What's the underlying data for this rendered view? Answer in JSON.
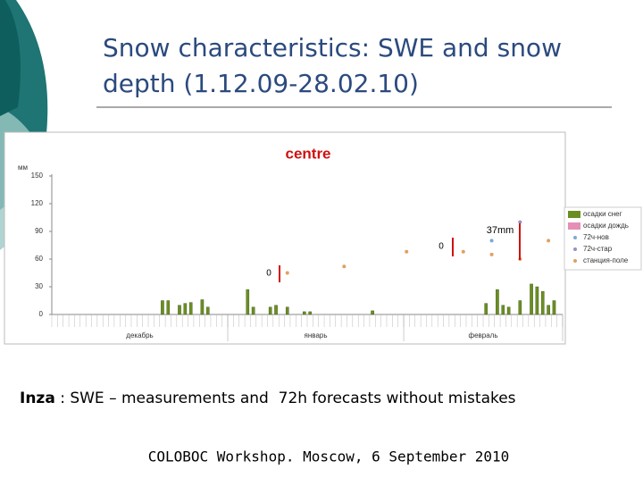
{
  "slide": {
    "title_lines": [
      "Snow characteristics: SWE and snow",
      "depth (1.12.09-28.02.10)"
    ],
    "caption_place": "Inza",
    "caption_text": " : SWE – measurements and  72h forecasts without mistakes",
    "footer": "COLOBOC Workshop. Moscow, 6 September 2010"
  },
  "chart_data": {
    "type": "bar",
    "title": "centre",
    "y_label": "мм",
    "ylim": [
      0,
      150
    ],
    "yticks": [
      0,
      30,
      60,
      90,
      120,
      150
    ],
    "month_labels": [
      "декабрь",
      "январь",
      "февраль"
    ],
    "annotations": [
      "0",
      "0",
      "37mm"
    ],
    "categories": [
      null,
      null,
      null,
      null,
      null,
      null,
      null,
      null,
      null,
      null,
      null,
      null,
      null,
      null,
      null,
      null,
      null,
      null,
      null,
      null,
      null,
      null,
      null,
      null,
      null,
      null,
      null,
      null,
      null,
      null,
      null,
      null,
      null,
      null,
      null,
      null,
      null,
      null,
      null,
      null,
      null,
      null,
      null,
      null,
      null,
      null,
      null,
      null,
      null,
      null,
      null,
      null,
      null,
      null,
      null,
      null,
      null,
      null,
      null,
      null,
      null,
      null,
      null,
      null,
      null,
      null,
      null,
      null,
      null,
      null,
      null,
      null,
      null,
      null,
      null,
      null,
      null,
      null,
      null,
      null,
      null,
      null,
      null,
      null,
      null,
      null,
      null,
      null,
      null,
      null
    ],
    "series": [
      {
        "name": "осадки снег",
        "color": "#6b8e23",
        "mark": "bar",
        "values": [
          null,
          null,
          null,
          null,
          null,
          null,
          null,
          null,
          null,
          null,
          null,
          null,
          null,
          null,
          null,
          null,
          null,
          null,
          null,
          15,
          15,
          null,
          10,
          12,
          13,
          null,
          16,
          8,
          null,
          null,
          null,
          null,
          null,
          null,
          27,
          8,
          null,
          null,
          8,
          10,
          null,
          8,
          null,
          null,
          3,
          3,
          null,
          null,
          null,
          null,
          null,
          null,
          null,
          null,
          null,
          null,
          4,
          null,
          null,
          null,
          null,
          null,
          null,
          null,
          null,
          null,
          null,
          null,
          null,
          null,
          null,
          null,
          null,
          null,
          null,
          null,
          12,
          null,
          27,
          10,
          8,
          null,
          15,
          null,
          33,
          30,
          25,
          10,
          15,
          null
        ]
      },
      {
        "name": "осадки дождь",
        "color": "#e58fb5",
        "mark": "bar",
        "values": [
          null,
          null,
          null,
          null,
          null,
          null,
          null,
          null,
          null,
          null,
          null,
          null,
          null,
          null,
          null,
          null,
          null,
          null,
          null,
          null,
          null,
          null,
          null,
          null,
          null,
          null,
          null,
          null,
          null,
          null,
          null,
          null,
          null,
          null,
          null,
          null,
          null,
          null,
          null,
          null,
          null,
          null,
          null,
          null,
          null,
          null,
          null,
          null,
          null,
          null,
          null,
          null,
          null,
          null,
          null,
          null,
          null,
          null,
          null,
          null,
          null,
          null,
          null,
          null,
          null,
          null,
          null,
          null,
          null,
          null,
          null,
          null,
          null,
          null,
          null,
          null,
          null,
          null,
          null,
          null,
          null,
          null,
          null,
          null,
          null,
          null,
          null,
          null,
          null,
          null
        ]
      },
      {
        "name": "72ч-нов",
        "color": "#7fa6d9",
        "mark": "dot",
        "values": [
          null,
          null,
          null,
          null,
          null,
          null,
          null,
          null,
          null,
          null,
          null,
          null,
          null,
          null,
          null,
          null,
          null,
          null,
          null,
          null,
          null,
          null,
          null,
          null,
          null,
          null,
          null,
          null,
          null,
          null,
          null,
          null,
          null,
          null,
          null,
          null,
          null,
          null,
          null,
          null,
          null,
          null,
          null,
          null,
          null,
          null,
          null,
          null,
          null,
          null,
          null,
          null,
          null,
          null,
          null,
          null,
          null,
          null,
          null,
          null,
          null,
          null,
          null,
          null,
          null,
          null,
          null,
          null,
          null,
          null,
          null,
          null,
          null,
          null,
          null,
          null,
          null,
          80,
          null,
          null,
          null,
          null,
          null,
          null,
          null,
          null,
          null,
          null,
          null,
          null
        ]
      },
      {
        "name": "72ч-стар",
        "color": "#9a8fc0",
        "mark": "dot",
        "values": [
          null,
          null,
          null,
          null,
          null,
          null,
          null,
          null,
          null,
          null,
          null,
          null,
          null,
          null,
          null,
          null,
          null,
          null,
          null,
          null,
          null,
          null,
          null,
          null,
          null,
          null,
          null,
          null,
          null,
          null,
          null,
          null,
          null,
          null,
          null,
          null,
          null,
          null,
          null,
          null,
          null,
          null,
          null,
          null,
          null,
          null,
          null,
          null,
          null,
          null,
          null,
          null,
          null,
          null,
          null,
          null,
          null,
          null,
          null,
          null,
          null,
          null,
          null,
          null,
          null,
          null,
          null,
          null,
          null,
          null,
          null,
          null,
          null,
          null,
          null,
          null,
          null,
          null,
          null,
          null,
          null,
          null,
          100,
          null,
          null,
          null,
          null,
          null,
          null,
          null
        ]
      },
      {
        "name": "станция-поле",
        "color": "#e0a060",
        "mark": "dot",
        "values": [
          null,
          null,
          null,
          null,
          null,
          null,
          null,
          null,
          null,
          null,
          null,
          null,
          null,
          null,
          null,
          null,
          null,
          null,
          null,
          null,
          null,
          null,
          null,
          null,
          null,
          null,
          null,
          null,
          null,
          null,
          null,
          null,
          null,
          null,
          null,
          null,
          null,
          null,
          null,
          null,
          null,
          45,
          null,
          null,
          null,
          null,
          null,
          null,
          null,
          null,
          null,
          52,
          null,
          null,
          null,
          null,
          null,
          null,
          null,
          null,
          null,
          null,
          68,
          null,
          null,
          null,
          null,
          null,
          null,
          null,
          null,
          null,
          68,
          null,
          null,
          null,
          null,
          65,
          null,
          null,
          null,
          null,
          60,
          null,
          null,
          null,
          null,
          80,
          null,
          null
        ]
      }
    ]
  }
}
